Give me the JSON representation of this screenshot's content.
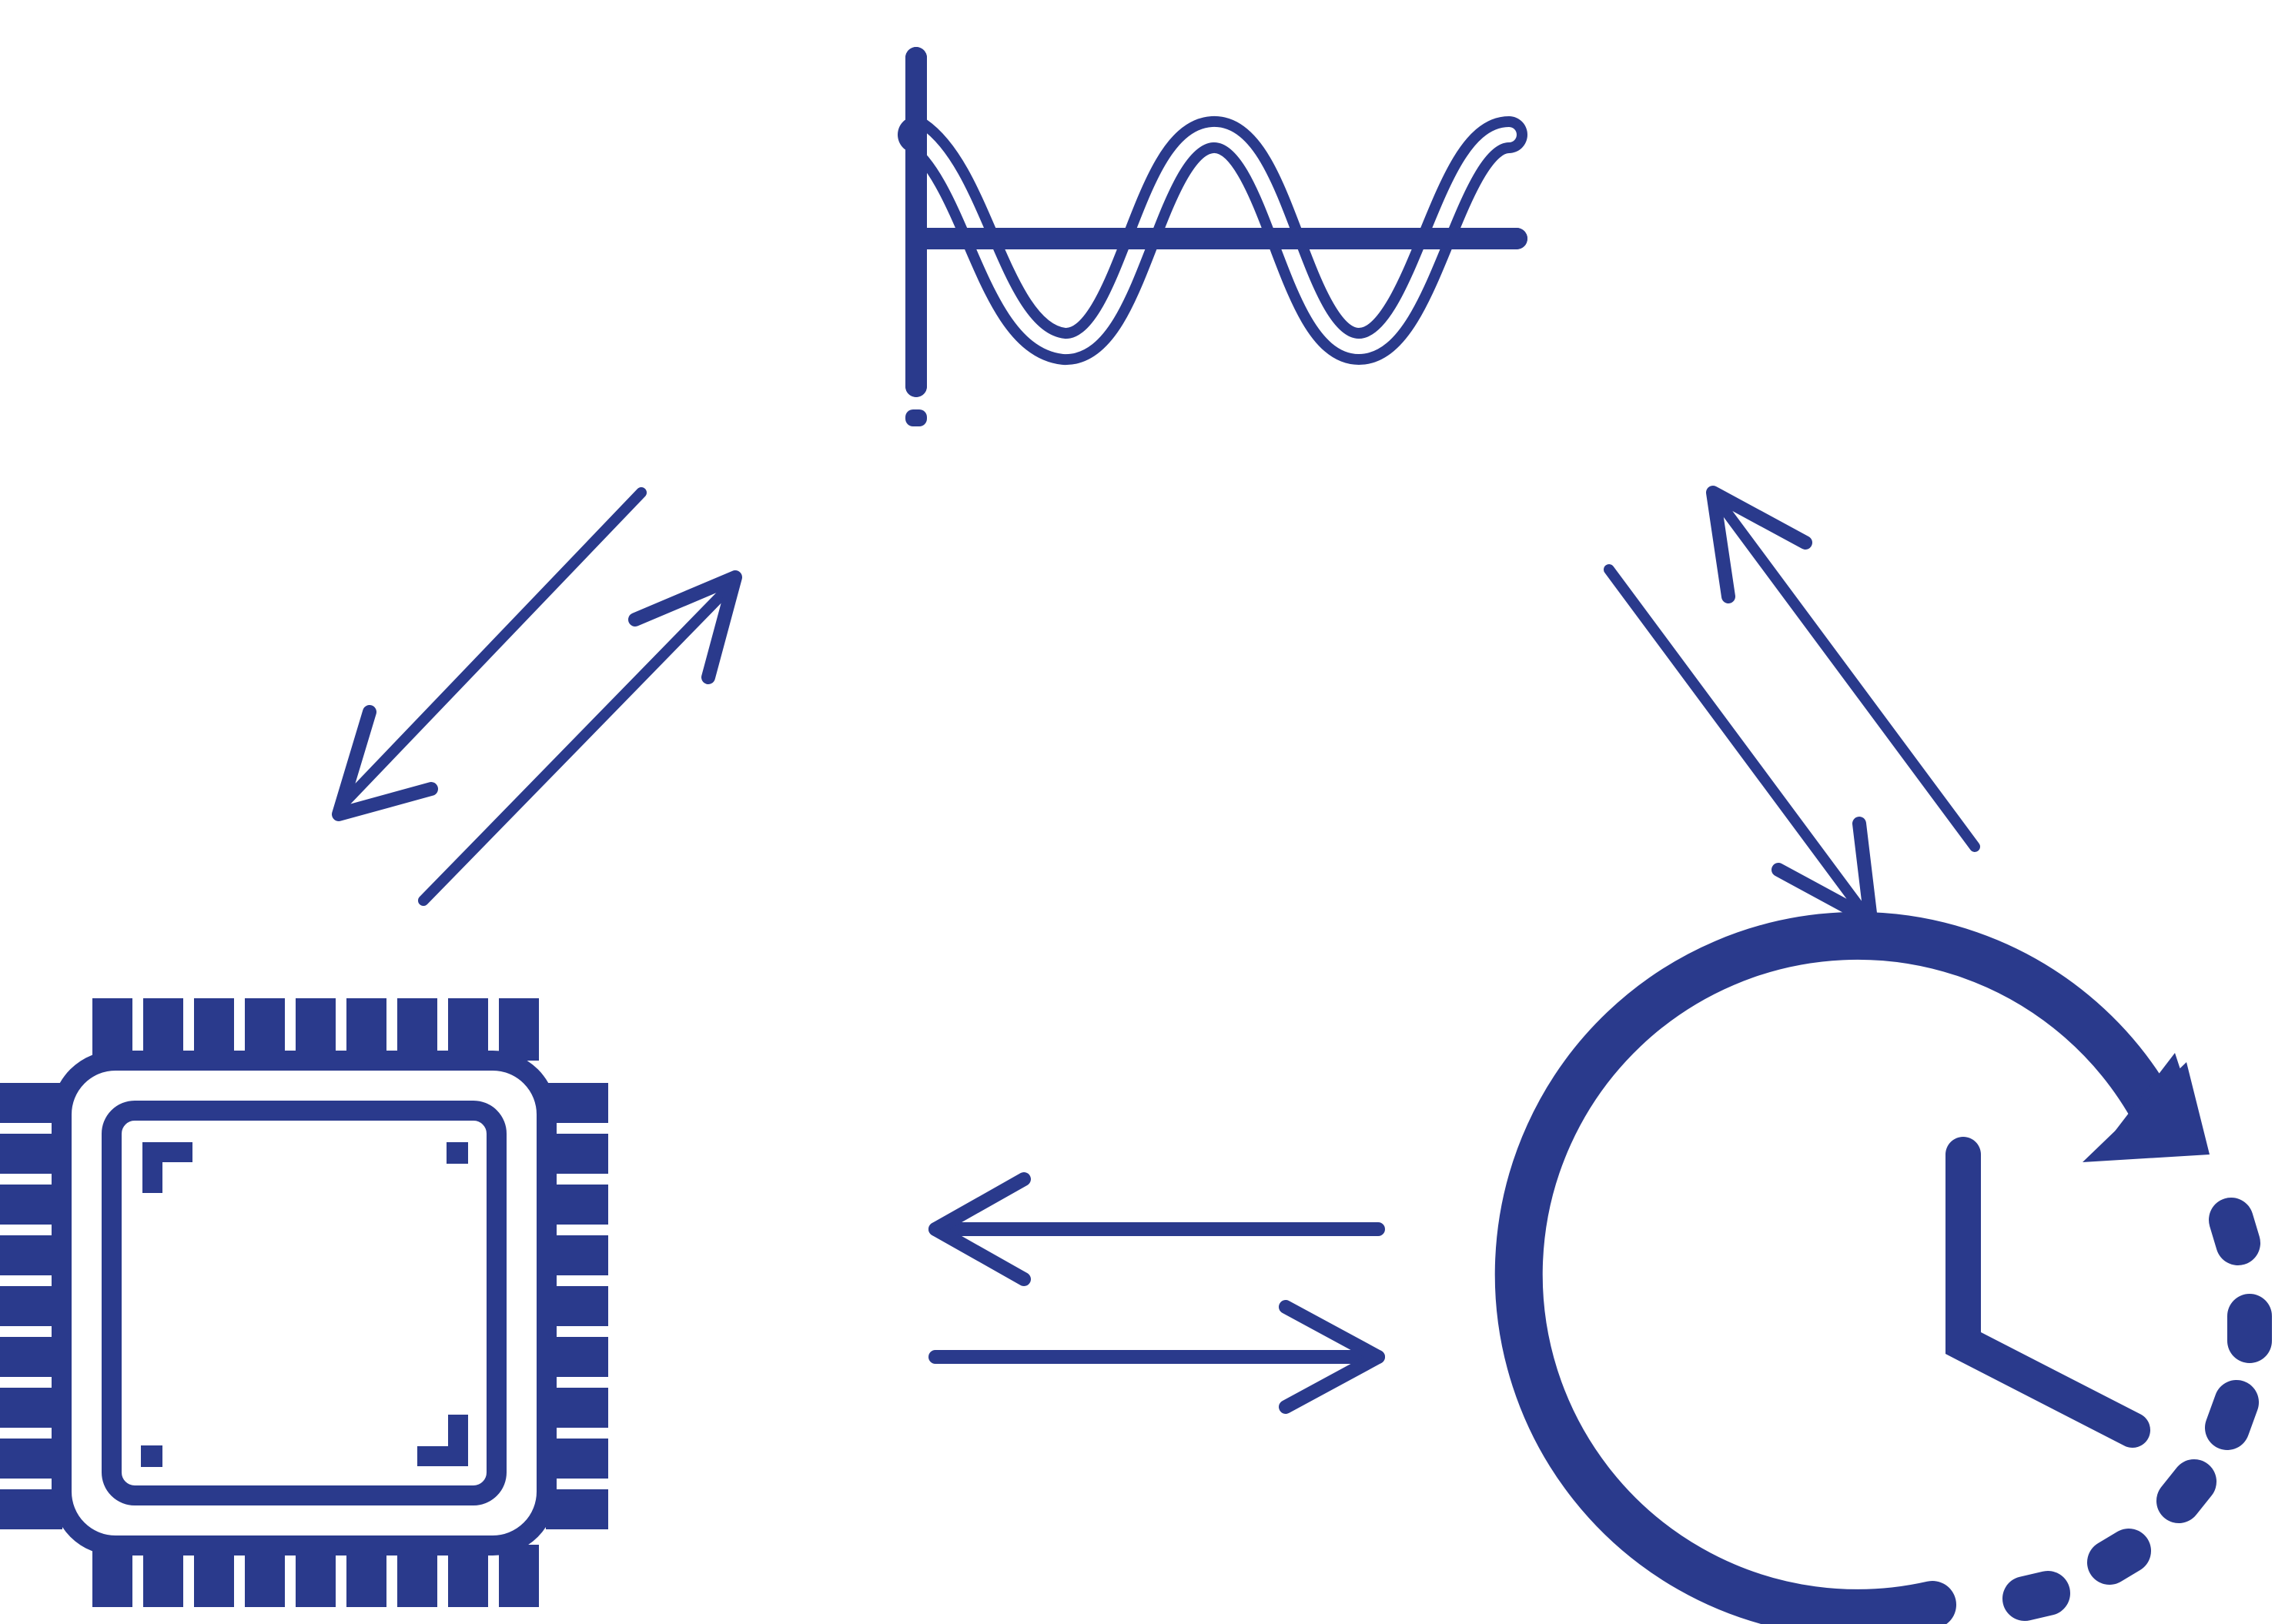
{
  "diagram": {
    "colors": {
      "primary": "#2a3a8c",
      "background": "#ffffff"
    },
    "nodes": [
      {
        "id": "waveform",
        "icon": "sine-wave-icon"
      },
      {
        "id": "chip",
        "icon": "microchip-icon"
      },
      {
        "id": "clock",
        "icon": "clock-refresh-icon"
      }
    ],
    "connections": [
      {
        "from": "waveform",
        "to": "chip",
        "icon": "bidirectional-arrows-icon"
      },
      {
        "from": "waveform",
        "to": "clock",
        "icon": "bidirectional-arrows-icon"
      },
      {
        "from": "chip",
        "to": "clock",
        "icon": "bidirectional-arrows-icon"
      }
    ]
  }
}
